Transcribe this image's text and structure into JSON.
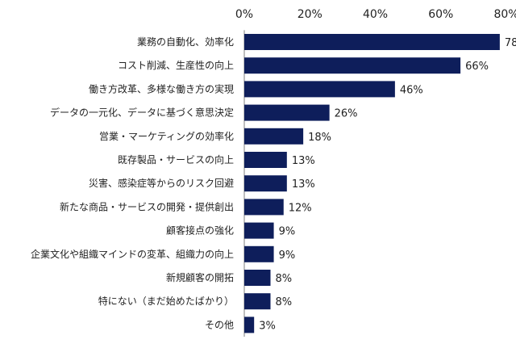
{
  "chart_data": {
    "type": "bar",
    "orientation": "horizontal",
    "categories": [
      "業務の自動化、効率化",
      "コスト削減、生産性の向上",
      "働き方改革、多様な働き方の実現",
      "データの一元化、データに基づく意思決定",
      "営業・マーケティングの効率化",
      "既存製品・サービスの向上",
      "災害、感染症等からのリスク回避",
      "新たな商品・サービスの開発・提供創出",
      "顧客接点の強化",
      "企業文化や組織マインドの変革、組織力の向上",
      "新規顧客の開拓",
      "特にない（まだ始めたばかり）",
      "その他"
    ],
    "values": [
      78,
      66,
      46,
      26,
      18,
      13,
      13,
      12,
      9,
      9,
      8,
      8,
      3
    ],
    "value_labels": [
      "78",
      "66%",
      "46%",
      "26%",
      "18%",
      "13%",
      "13%",
      "12%",
      "9%",
      "9%",
      "8%",
      "8%",
      "3%"
    ],
    "xlim": [
      0,
      80
    ],
    "x_ticks": [
      0,
      20,
      40,
      60,
      80
    ],
    "x_tick_labels": [
      "0%",
      "20%",
      "40%",
      "60%",
      "80%"
    ],
    "axis_position": "top",
    "grid": false,
    "title": "",
    "xlabel": "",
    "ylabel": "",
    "bar_color": "#0e1e5b"
  }
}
